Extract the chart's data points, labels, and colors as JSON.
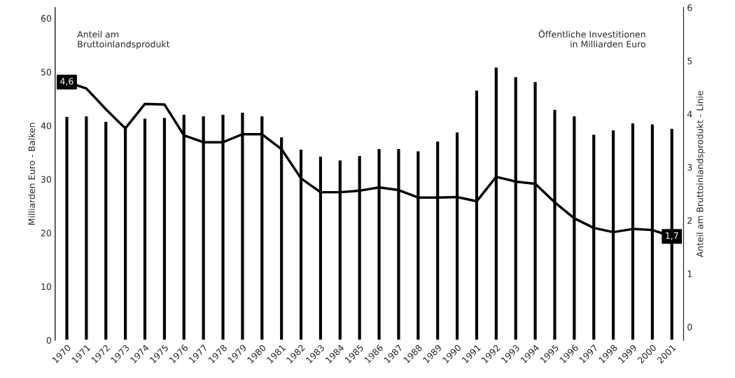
{
  "chart_data": {
    "type": "bar",
    "categories": [
      "1970",
      "1971",
      "1972",
      "1973",
      "1974",
      "1975",
      "1976",
      "1977",
      "1978",
      "1979",
      "1980",
      "1981",
      "1982",
      "1983",
      "1984",
      "1985",
      "1986",
      "1987",
      "1988",
      "1989",
      "1990",
      "1991",
      "1992",
      "1993",
      "1994",
      "1995",
      "1996",
      "1997",
      "1998",
      "1999",
      "2000",
      "2001"
    ],
    "series": [
      {
        "color": "#000000",
        "values": [
          41.7,
          41.8,
          40.8,
          40.0,
          41.4,
          41.5,
          42.1,
          41.8,
          42.1,
          42.5,
          41.8,
          37.9,
          35.6,
          34.3,
          33.6,
          34.4,
          35.7,
          35.7,
          35.3,
          37.1,
          38.8,
          46.6,
          50.9,
          49.1,
          48.2,
          43.0,
          41.8,
          38.4,
          39.2,
          40.5,
          40.3,
          39.5
        ]
      },
      {
        "type": "line",
        "axis": "y2",
        "color": "#000000",
        "values": [
          4.6,
          4.48,
          4.09,
          3.73,
          4.19,
          4.18,
          3.6,
          3.47,
          3.47,
          3.62,
          3.62,
          3.34,
          2.79,
          2.53,
          2.53,
          2.56,
          2.62,
          2.57,
          2.43,
          2.43,
          2.44,
          2.36,
          2.82,
          2.73,
          2.69,
          2.34,
          2.04,
          1.86,
          1.78,
          1.84,
          1.82,
          1.7
        ],
        "value_labels": [
          "4,6",
          null,
          null,
          null,
          null,
          null,
          null,
          null,
          null,
          null,
          null,
          null,
          null,
          null,
          null,
          null,
          null,
          null,
          null,
          null,
          null,
          null,
          null,
          null,
          null,
          null,
          null,
          null,
          null,
          null,
          null,
          "1,7"
        ]
      }
    ],
    "ylabel": "Milliarden Euro - Balken",
    "y2label": "Anteil am Bruttoinlandsprodukt - Linie",
    "ylim": [
      0,
      62
    ],
    "yticks": [
      0,
      10,
      20,
      30,
      40,
      50,
      60
    ],
    "y2lim": [
      -0.25,
      6
    ],
    "y2ticks": [
      0,
      1,
      2,
      3,
      4,
      5,
      6
    ],
    "annotations": [
      "Anteil am\nBruttoinlandsprodukt",
      "Öffentliche Investitionen\nin Milliarden Euro"
    ],
    "grid": false,
    "legend": false
  }
}
